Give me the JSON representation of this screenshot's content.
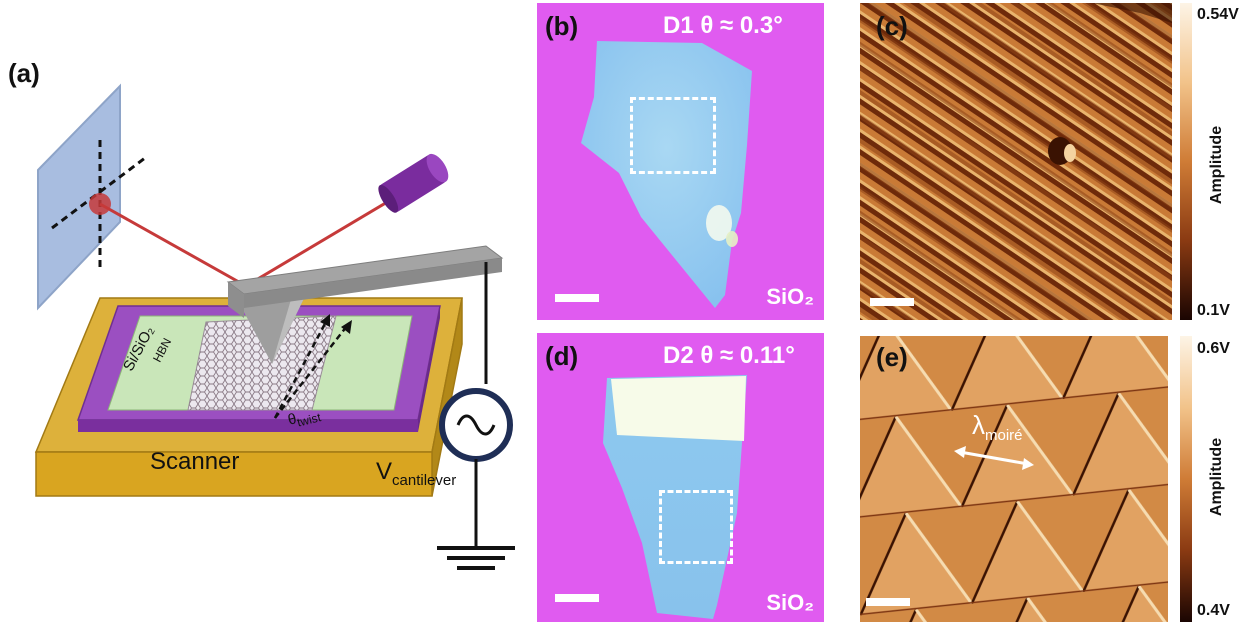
{
  "panel_a": {
    "label": "(a)",
    "scanner_label": "Scanner",
    "substrate_label": "Si/SiO₂",
    "hbn_label": "HBN",
    "twist_label_main": "θ",
    "twist_label_sub": "twist",
    "cantilever_label_main": "V",
    "cantilever_label_sub": "cantilever",
    "colors": {
      "scanner": "#d9a520",
      "substrate": "#9b4fc1",
      "hbn": "#c9e6b9",
      "laser": "#c63a3a",
      "laser_source": "#7a2c9e",
      "detector": "#a8bde0",
      "cantilever": "#a4a4a4"
    }
  },
  "panel_b": {
    "label": "(b)",
    "title": "D1  θ ≈ 0.3°",
    "substrate": "SiO₂",
    "colors": {
      "background": "#e05bf0",
      "flake": "#9fd0f0"
    }
  },
  "panel_c": {
    "label": "(c)",
    "cbar_max": "0.54V",
    "cbar_min": "0.1V",
    "cbar_title": "Amplitude"
  },
  "panel_d": {
    "label": "(d)",
    "title": "D2  θ ≈ 0.11°",
    "substrate": "SiO₂",
    "colors": {
      "background": "#e05bf0",
      "flake": "#9fd0f0"
    }
  },
  "panel_e": {
    "label": "(e)",
    "cbar_max": "0.6V",
    "cbar_min": "0.4V",
    "cbar_title": "Amplitude",
    "lambda_main": "λ",
    "lambda_sub": "moiré"
  }
}
